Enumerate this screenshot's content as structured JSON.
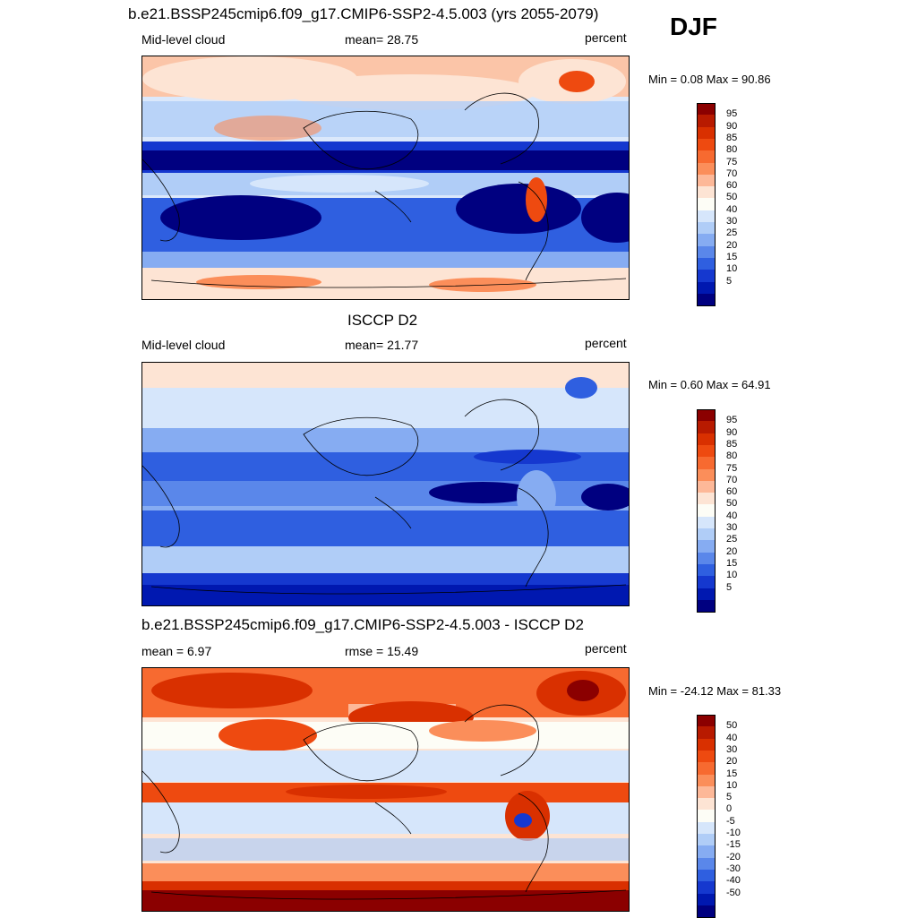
{
  "season": "DJF",
  "panels": [
    {
      "title": "b.e21.BSSP245cmip6.f09_g17.CMIP6-SSP2-4.5.003 (yrs 2055-2079)",
      "left": "Mid-level cloud",
      "center": "mean=  28.75",
      "right": "percent",
      "minmax": "Min =   0.08 Max =  90.86"
    },
    {
      "title": "ISCCP D2",
      "left": "Mid-level cloud",
      "center": "mean=  21.77",
      "right": "percent",
      "minmax": "Min =   0.60 Max =  64.91"
    },
    {
      "title": "b.e21.BSSP245cmip6.f09_g17.CMIP6-SSP2-4.5.003 - ISCCP D2",
      "left": "mean =   6.97",
      "center": "rmse =  15.49",
      "right": "percent",
      "minmax": "Min = -24.12 Max =  81.33"
    }
  ],
  "colorbars": {
    "abs": {
      "labels": [
        "95",
        "90",
        "85",
        "80",
        "75",
        "70",
        "60",
        "50",
        "40",
        "30",
        "25",
        "20",
        "15",
        "10",
        "5"
      ],
      "colors": [
        "#8b0000",
        "#b81a00",
        "#d93000",
        "#ee4a10",
        "#f76a30",
        "#fb8e5a",
        "#fdb898",
        "#fde4d4",
        "#fdfdf6",
        "#d6e6fb",
        "#b0cdf7",
        "#86acf2",
        "#5a87ea",
        "#2f5fe0",
        "#1538cf",
        "#0018b0",
        "#000080"
      ]
    },
    "diff": {
      "labels": [
        "50",
        "40",
        "30",
        "20",
        "15",
        "10",
        "5",
        "0",
        "-5",
        "-10",
        "-15",
        "-20",
        "-30",
        "-40",
        "-50"
      ],
      "colors": [
        "#8b0000",
        "#b81a00",
        "#d93000",
        "#ee4a10",
        "#f76a30",
        "#fb8e5a",
        "#fdb898",
        "#fde4d4",
        "#fdfdf6",
        "#d6e6fb",
        "#b0cdf7",
        "#86acf2",
        "#5a87ea",
        "#2f5fe0",
        "#1538cf",
        "#0018b0",
        "#000080"
      ]
    }
  }
}
